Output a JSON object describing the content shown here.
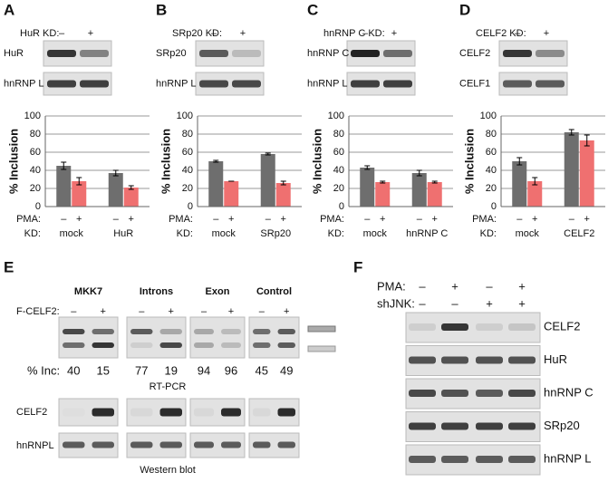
{
  "panels": [
    {
      "letter": "A",
      "kd_label": "HuR KD:",
      "signs": [
        "–",
        "+"
      ],
      "rows": [
        "HuR",
        "hnRNP L"
      ]
    },
    {
      "letter": "B",
      "kd_label": "SRp20 KD:",
      "signs": [
        "–",
        "+"
      ],
      "rows": [
        "SRp20",
        "hnRNP L"
      ]
    },
    {
      "letter": "C",
      "kd_label": "hnRNP C KD:",
      "signs": [
        "–",
        "+"
      ],
      "rows": [
        "hnRNP C",
        "hnRNP L"
      ]
    },
    {
      "letter": "D",
      "kd_label": "CELF2 KD:",
      "signs": [
        "–",
        "+"
      ],
      "rows": [
        "CELF2",
        "CELF1"
      ]
    }
  ],
  "chart_data": [
    {
      "type": "bar",
      "ylabel": "% Inclusion",
      "ylim": [
        0,
        100
      ],
      "yticks": [
        0,
        20,
        40,
        60,
        80,
        100
      ],
      "grid": true,
      "row_labels": [
        "PMA:",
        "KD:"
      ],
      "categories": [
        "mock",
        "HuR"
      ],
      "series": [
        {
          "name": "–",
          "color": "#6e6e6e",
          "values": [
            45,
            37
          ],
          "errors": [
            4,
            3
          ]
        },
        {
          "name": "+",
          "color": "#ef7070",
          "values": [
            28,
            21
          ],
          "errors": [
            4,
            2
          ]
        }
      ]
    },
    {
      "type": "bar",
      "ylabel": "% Inclusion",
      "ylim": [
        0,
        100
      ],
      "yticks": [
        0,
        20,
        40,
        60,
        80,
        100
      ],
      "grid": true,
      "row_labels": [
        "PMA:",
        "KD:"
      ],
      "categories": [
        "mock",
        "SRp20"
      ],
      "series": [
        {
          "name": "–",
          "color": "#6e6e6e",
          "values": [
            50,
            58
          ],
          "errors": [
            1,
            1
          ]
        },
        {
          "name": "+",
          "color": "#ef7070",
          "values": [
            28,
            26
          ],
          "errors": [
            0,
            2
          ]
        }
      ]
    },
    {
      "type": "bar",
      "ylabel": "% Inclusion",
      "ylim": [
        0,
        100
      ],
      "yticks": [
        0,
        20,
        40,
        60,
        80,
        100
      ],
      "grid": true,
      "row_labels": [
        "PMA:",
        "KD:"
      ],
      "categories": [
        "mock",
        "hnRNP C"
      ],
      "series": [
        {
          "name": "–",
          "color": "#6e6e6e",
          "values": [
            43,
            37
          ],
          "errors": [
            2,
            3
          ]
        },
        {
          "name": "+",
          "color": "#ef7070",
          "values": [
            27,
            27
          ],
          "errors": [
            1,
            1
          ]
        }
      ]
    },
    {
      "type": "bar",
      "ylabel": "% Inclusion",
      "ylim": [
        0,
        100
      ],
      "yticks": [
        0,
        20,
        40,
        60,
        80,
        100
      ],
      "grid": true,
      "row_labels": [
        "PMA:",
        "KD:"
      ],
      "categories": [
        "mock",
        "CELF2"
      ],
      "series": [
        {
          "name": "–",
          "color": "#6e6e6e",
          "values": [
            50,
            82
          ],
          "errors": [
            4,
            3
          ]
        },
        {
          "name": "+",
          "color": "#ef7070",
          "values": [
            28,
            73
          ],
          "errors": [
            4,
            6
          ]
        }
      ]
    }
  ],
  "panel_e": {
    "letter": "E",
    "treatment_label": "F-CELF2:",
    "columns": [
      {
        "name": "MKK7",
        "signs": [
          "–",
          "+"
        ],
        "inclusion": [
          40,
          15
        ]
      },
      {
        "name": "Introns",
        "signs": [
          "–",
          "+"
        ],
        "inclusion": [
          77,
          19
        ]
      },
      {
        "name": "Exon",
        "signs": [
          "–",
          "+"
        ],
        "inclusion": [
          94,
          96
        ]
      },
      {
        "name": "Control",
        "signs": [
          "–",
          "+"
        ],
        "inclusion": [
          45,
          49
        ]
      }
    ],
    "inclusion_label": "% Inc:",
    "rtpcr_label": "RT-PCR",
    "blot_rows": [
      "CELF2",
      "hnRNPL"
    ],
    "western_label": "Western blot"
  },
  "panel_f": {
    "letter": "F",
    "conditions": [
      {
        "label": "PMA:",
        "signs": [
          "–",
          "+",
          "–",
          "+"
        ]
      },
      {
        "label": "shJNK:",
        "signs": [
          "–",
          "–",
          "+",
          "+"
        ]
      }
    ],
    "rows": [
      "CELF2",
      "HuR",
      "hnRNP C",
      "SRp20",
      "hnRNP L"
    ]
  }
}
